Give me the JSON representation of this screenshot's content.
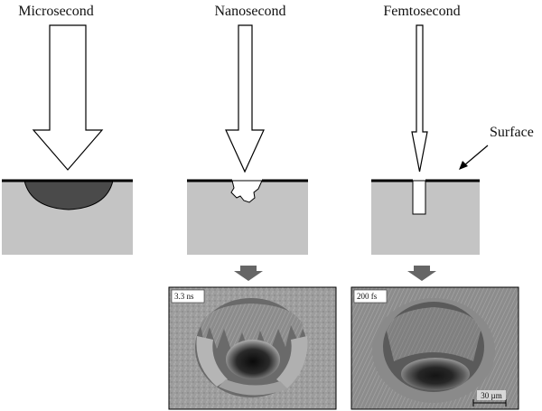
{
  "columns": {
    "microsecond": {
      "label": "Microsecond"
    },
    "nanosecond": {
      "label": "Nanosecond"
    },
    "femtosecond": {
      "label": "Femtosecond"
    }
  },
  "surface_label": "Surface",
  "micrographs": {
    "nanosecond": {
      "tag": "3.3 ns"
    },
    "femtosecond": {
      "tag": "200 fs",
      "scale_bar": "30 µm"
    }
  },
  "colors": {
    "material": "#c4c4c4",
    "melt_zone": "#4a4a4a",
    "surface_line": "#000000",
    "down_arrow": "#666666"
  }
}
